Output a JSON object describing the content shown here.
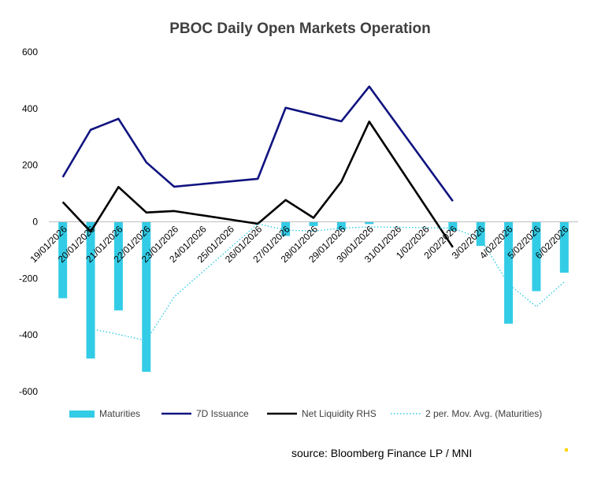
{
  "chart_data": {
    "type": "bar",
    "title": "PBOC Daily Open Markets Operation",
    "categories": [
      "19/01/2026",
      "20/01/2026",
      "21/01/2026",
      "22/01/2026",
      "23/01/2026",
      "24/01/2026",
      "25/01/2026",
      "26/01/2026",
      "27/01/2026",
      "28/01/2026",
      "29/01/2026",
      "30/01/2026",
      "31/01/2026",
      "1/02/2026",
      "2/02/2026",
      "3/02/2026",
      "4/02/2026",
      "5/02/2026",
      "6/02/2026"
    ],
    "ylim": [
      -600,
      600
    ],
    "yticks": [
      "600",
      "400",
      "200",
      "0",
      "-200",
      "-400",
      "-600"
    ],
    "ytick_values": [
      600,
      400,
      200,
      0,
      -200,
      -400,
      -600
    ],
    "grid": false,
    "legend": "bottom",
    "series": [
      {
        "name": "Maturities",
        "kind": "bar",
        "color": "#33CCE6",
        "values": [
          -270,
          -483,
          -313,
          -530,
          null,
          null,
          null,
          null,
          -50,
          -15,
          -28,
          -8,
          null,
          null,
          -32,
          -85,
          -360,
          -245,
          -180
        ]
      },
      {
        "name": "7D Issuance",
        "kind": "line",
        "color": "#10137F",
        "values": [
          158,
          325,
          364,
          210,
          124,
          null,
          null,
          152,
          403,
          null,
          355,
          478,
          null,
          null,
          73,
          null,
          null,
          null,
          null
        ]
      },
      {
        "name": "Net Liquidity RHS",
        "kind": "line",
        "color": "#000000",
        "values": [
          70,
          -35,
          123,
          33,
          38,
          null,
          null,
          -7,
          77,
          14,
          142,
          354,
          null,
          null,
          -90,
          null,
          null,
          null,
          null
        ]
      },
      {
        "name": "2 per. Mov. Avg. (Maturities)",
        "kind": "dotted-line",
        "color": "#33CCE6",
        "values": [
          null,
          -378,
          -398,
          -420,
          -265,
          null,
          null,
          -7,
          -29,
          -33,
          -22,
          -18,
          null,
          null,
          -22,
          -60,
          -220,
          -300,
          -212
        ]
      }
    ]
  },
  "source": "source:  Bloomberg Finance LP / MNI"
}
